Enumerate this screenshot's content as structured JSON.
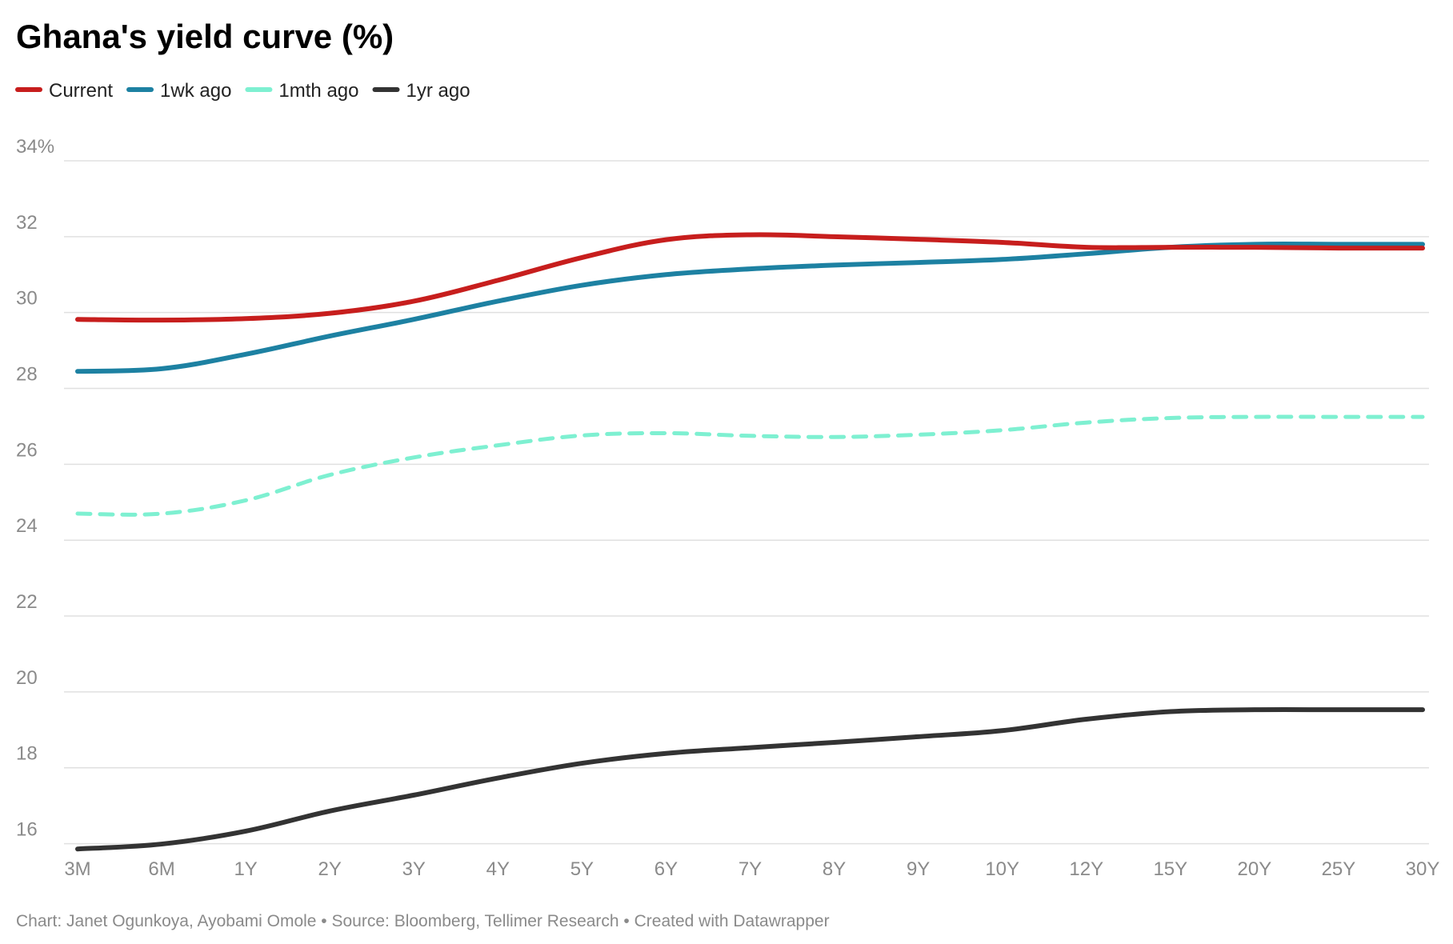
{
  "chart_data": {
    "type": "line",
    "title": "Ghana's yield curve (%)",
    "xlabel": "",
    "ylabel": "",
    "categories": [
      "3M",
      "6M",
      "1Y",
      "2Y",
      "3Y",
      "4Y",
      "5Y",
      "6Y",
      "7Y",
      "8Y",
      "9Y",
      "10Y",
      "12Y",
      "15Y",
      "20Y",
      "25Y",
      "30Y"
    ],
    "y_ticks": [
      {
        "value": 34,
        "label": "34%"
      },
      {
        "value": 32,
        "label": "32"
      },
      {
        "value": 30,
        "label": "30"
      },
      {
        "value": 28,
        "label": "28"
      },
      {
        "value": 26,
        "label": "26"
      },
      {
        "value": 24,
        "label": "24"
      },
      {
        "value": 22,
        "label": "22"
      },
      {
        "value": 20,
        "label": "20"
      },
      {
        "value": 18,
        "label": "18"
      },
      {
        "value": 16,
        "label": "16"
      }
    ],
    "ylim": [
      15,
      34
    ],
    "grid": true,
    "legend_position": "top-left",
    "series": [
      {
        "name": "Current",
        "color": "#c71e1d",
        "dashed": false,
        "values": [
          29.82,
          29.8,
          29.84,
          29.98,
          30.3,
          30.85,
          31.45,
          31.92,
          32.05,
          32.0,
          31.93,
          31.85,
          31.72,
          31.72,
          31.72,
          31.7,
          31.7
        ]
      },
      {
        "name": "1wk ago",
        "color": "#1d81a2",
        "dashed": false,
        "values": [
          28.45,
          28.52,
          28.9,
          29.38,
          29.82,
          30.3,
          30.72,
          31.0,
          31.15,
          31.25,
          31.32,
          31.4,
          31.55,
          31.72,
          31.8,
          31.8,
          31.8
        ]
      },
      {
        "name": "1mth ago",
        "color": "#7ef0d1",
        "dashed": true,
        "values": [
          24.7,
          24.7,
          25.05,
          25.72,
          26.18,
          26.5,
          26.76,
          26.82,
          26.75,
          26.72,
          26.78,
          26.9,
          27.1,
          27.22,
          27.25,
          27.25,
          27.25
        ]
      },
      {
        "name": "1yr ago",
        "color": "#333333",
        "dashed": false,
        "values": [
          15.86,
          15.99,
          16.33,
          16.86,
          17.28,
          17.73,
          18.12,
          18.38,
          18.53,
          18.67,
          18.82,
          18.98,
          19.28,
          19.48,
          19.53,
          19.53,
          19.53
        ]
      }
    ]
  },
  "footer": {
    "text": "Chart: Janet Ogunkoya, Ayobami Omole • Source: Bloomberg, Tellimer Research • Created with Datawrapper"
  }
}
